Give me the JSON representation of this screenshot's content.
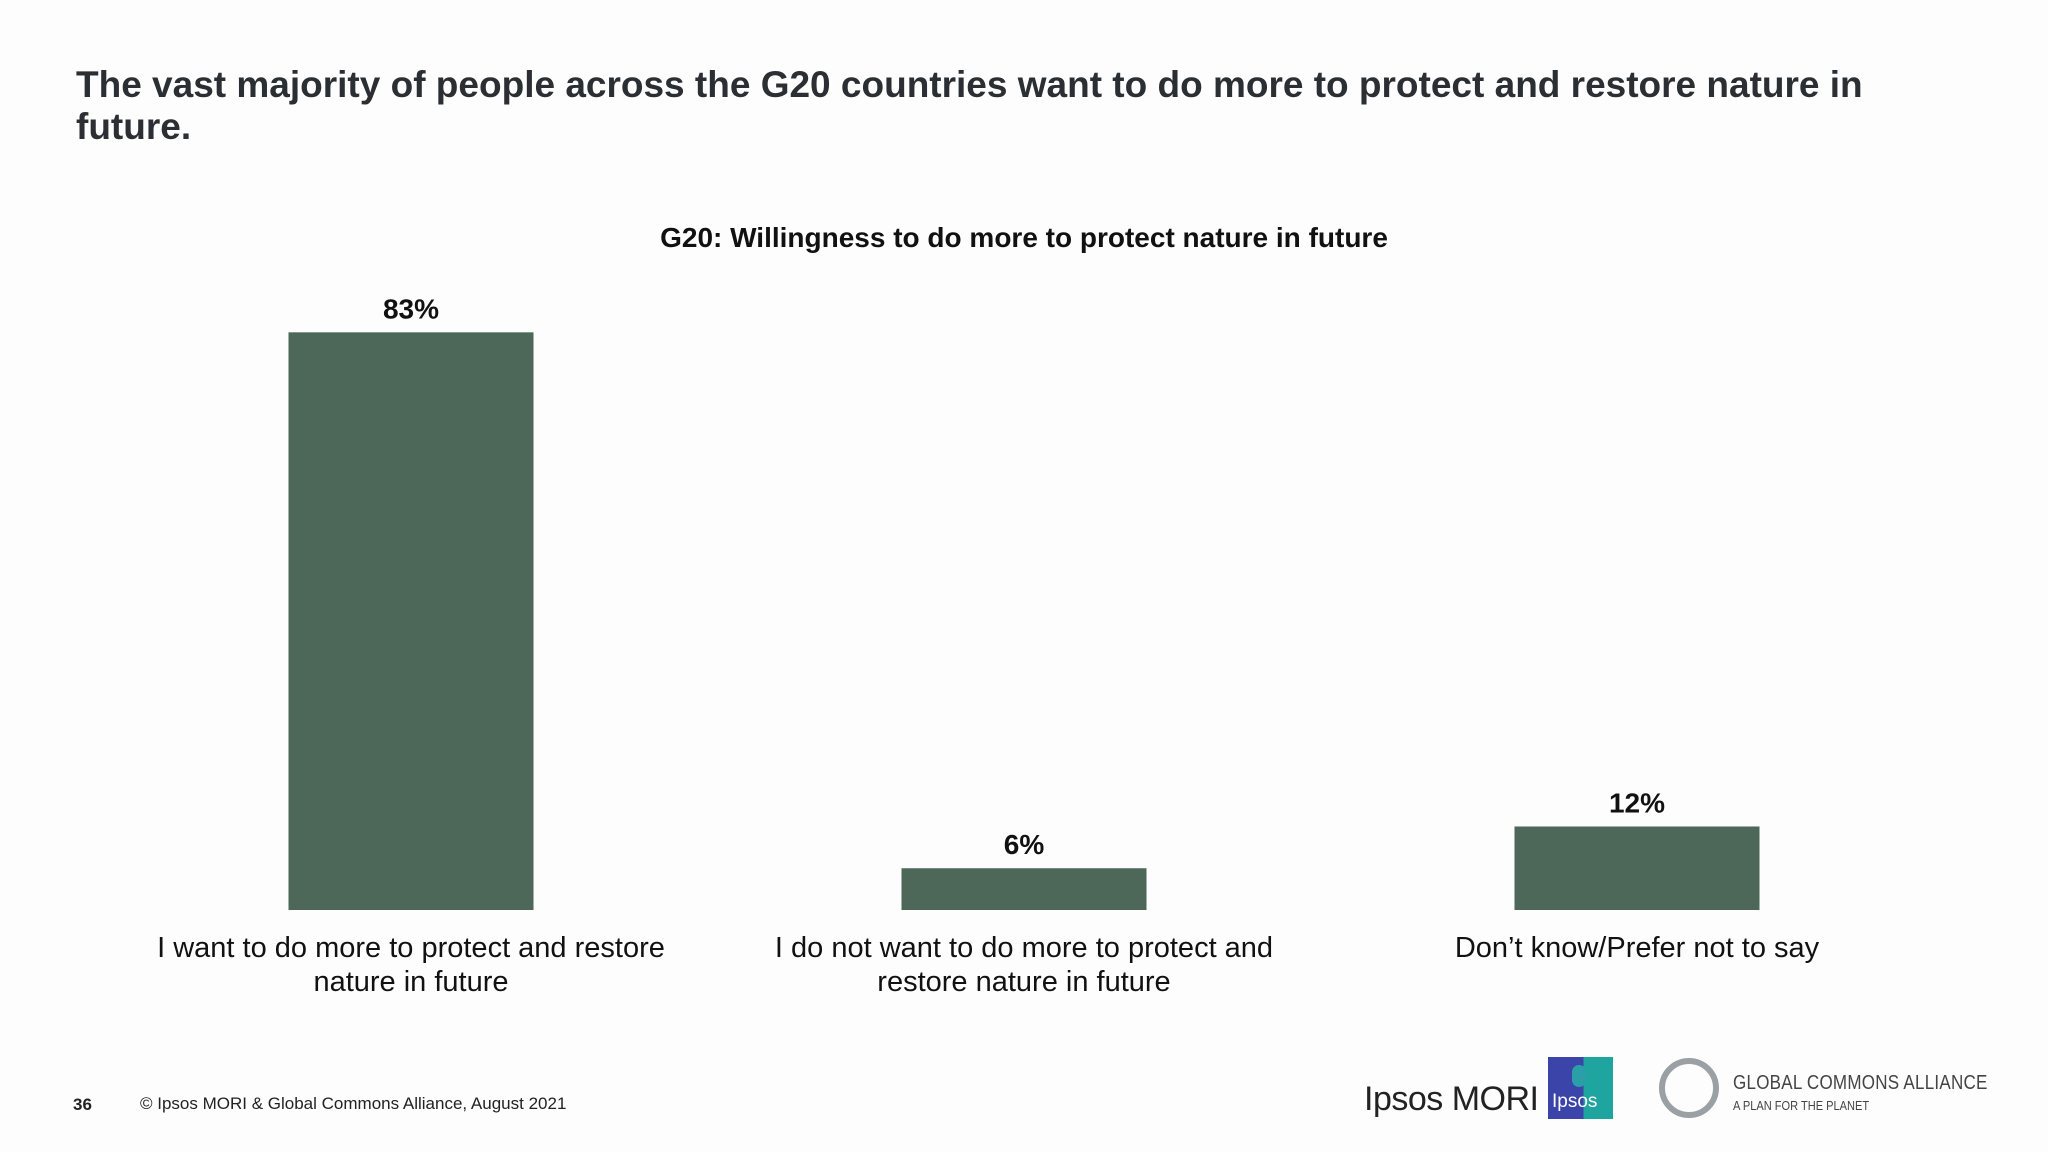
{
  "slide": {
    "headline": "The vast majority of people across the G20 countries want to do more to protect and restore nature in future.",
    "page_number": "36",
    "copyright": "© Ipsos MORI & Global Commons Alliance, August 2021",
    "logos": {
      "ipsos_mori": "Ipsos MORI",
      "ipsos": "Ipsos",
      "gca_name": "GLOBAL COMMONS ALLIANCE",
      "gca_tagline": "A PLAN FOR THE PLANET"
    }
  },
  "chart_data": {
    "type": "bar",
    "title": "G20: Willingness to do more to protect nature in future",
    "categories": [
      [
        "I want to do more to protect and restore",
        "nature in future"
      ],
      [
        "I do not want to do more to protect and",
        "restore nature in future"
      ],
      [
        "Don’t know/Prefer not to say"
      ]
    ],
    "values": [
      83,
      6,
      12
    ],
    "value_labels": [
      "83%",
      "6%",
      "12%"
    ],
    "unit": "%",
    "ylim": [
      0,
      100
    ],
    "grid": false,
    "bar_color": "#4d6858"
  }
}
